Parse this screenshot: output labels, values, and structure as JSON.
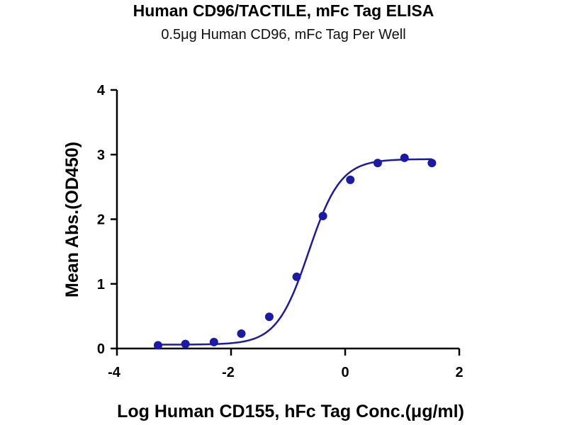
{
  "chart_data": {
    "type": "scatter",
    "title": "Human CD96/TACTILE, mFc Tag ELISA",
    "subtitle": "0.5μg Human CD96, mFc Tag Per Well",
    "xlabel": "Log Human CD155, hFc Tag Conc.(μg/ml)",
    "ylabel": "Mean Abs.(OD450)",
    "xlim": [
      -4,
      2
    ],
    "ylim": [
      0,
      4
    ],
    "x_ticks": [
      -4,
      -2,
      0,
      2
    ],
    "y_ticks": [
      0,
      1,
      2,
      3,
      4
    ],
    "grid": false,
    "series": [
      {
        "color": "#1a1aa6",
        "x": [
          -3.28,
          -2.8,
          -2.3,
          -1.82,
          -1.33,
          -0.85,
          -0.39,
          0.09,
          0.57,
          1.04,
          1.52
        ],
        "y": [
          0.05,
          0.07,
          0.1,
          0.23,
          0.49,
          1.11,
          2.05,
          2.61,
          2.87,
          2.95,
          2.87
        ]
      }
    ],
    "fit_curve": {
      "color": "#1a1aa6",
      "model": "4PL",
      "bottom": 0.06,
      "top": 2.93,
      "log_ec50": -0.64,
      "hill_slope": 1.55,
      "x_range": [
        -3.28,
        1.52
      ]
    }
  }
}
